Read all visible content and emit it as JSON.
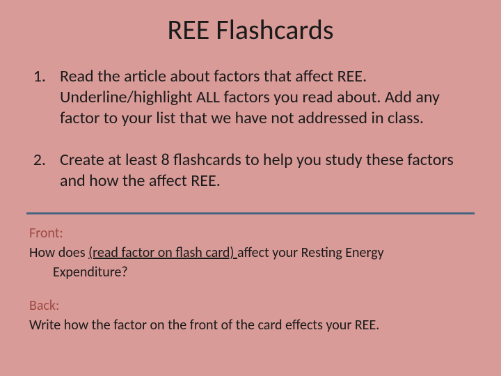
{
  "title": "REE Flashcards",
  "items": [
    {
      "num": "1.",
      "text": "Read the article about factors that affect REE. Underline/highlight ALL factors you read about. Add any factor to your list that we have not addressed in class."
    },
    {
      "num": "2.",
      "text": "Create at least 8 flashcards to help you study these factors and how the affect REE."
    }
  ],
  "front": {
    "label": "Front:",
    "line_pre": "How does ",
    "line_fill": "   (read factor on flash card)                    ",
    "line_post": " affect your Resting Energy",
    "line2": "Expenditure?"
  },
  "back": {
    "label": "Back:",
    "text": "Write how the factor on the front of the card effects your REE."
  },
  "colors": {
    "background": "#d99b98",
    "divider": "#486581",
    "label": "#9e4a43",
    "text": "#1a1a1a"
  },
  "typography": {
    "title_fontsize": 40,
    "body_fontsize": 24,
    "example_fontsize": 20,
    "font_family": "Calibri"
  }
}
